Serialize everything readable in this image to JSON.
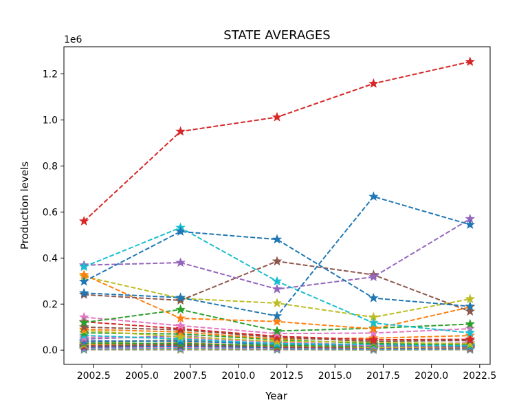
{
  "chart_data": {
    "type": "line",
    "title": "STATE AVERAGES",
    "xlabel": "Year",
    "ylabel": "Production levels",
    "y_offset_text": "1e6",
    "xlim": [
      2000.96,
      2023.04
    ],
    "ylim": [
      -62000,
      1318000
    ],
    "x_ticks": [
      2002.5,
      2005.0,
      2007.5,
      2010.0,
      2012.5,
      2015.0,
      2017.5,
      2020.0,
      2022.5
    ],
    "x_tick_labels": [
      "2002.5",
      "2005.0",
      "2007.5",
      "2010.0",
      "2012.5",
      "2015.0",
      "2017.5",
      "2020.0",
      "2022.5"
    ],
    "y_ticks": [
      0,
      200000,
      400000,
      600000,
      800000,
      1000000,
      1200000
    ],
    "y_tick_labels": [
      "0.0",
      "0.2",
      "0.4",
      "0.6",
      "0.8",
      "1.0",
      "1.2"
    ],
    "grid": false,
    "line_style": "dashed",
    "marker": "star",
    "x": [
      2002,
      2007,
      2012,
      2017,
      2022
    ],
    "series": [
      {
        "color": "#d62728",
        "values": [
          560000,
          950000,
          1012000,
          1158000,
          1253000
        ]
      },
      {
        "color": "#1f77b4",
        "values": [
          298000,
          515000,
          481000,
          226000,
          190000
        ]
      },
      {
        "color": "#1f77b4",
        "values": [
          248000,
          228000,
          148000,
          667000,
          545000
        ]
      },
      {
        "color": "#17becf",
        "values": [
          362000,
          532000,
          299000,
          118000,
          75000
        ]
      },
      {
        "color": "#9467bd",
        "values": [
          369000,
          380000,
          265000,
          318000,
          570000
        ]
      },
      {
        "color": "#8c564b",
        "values": [
          241000,
          216000,
          386000,
          327000,
          168000
        ]
      },
      {
        "color": "#ff7f0e",
        "values": [
          327000,
          138000,
          124000,
          92000,
          187000
        ]
      },
      {
        "color": "#bcbd22",
        "values": [
          320000,
          225000,
          204000,
          143000,
          222000
        ]
      },
      {
        "color": "#2ca02c",
        "values": [
          120000,
          176000,
          83000,
          95000,
          113000
        ]
      },
      {
        "color": "#e377c2",
        "values": [
          143000,
          106000,
          72000,
          74000,
          93000
        ]
      },
      {
        "color": "#d62728",
        "values": [
          123000,
          93000,
          60000,
          45000,
          47000
        ]
      },
      {
        "color": "#8c564b",
        "values": [
          100000,
          88000,
          55000,
          38000,
          42000
        ]
      },
      {
        "color": "#ff7f0e",
        "values": [
          90000,
          79000,
          48000,
          52000,
          63000
        ]
      },
      {
        "color": "#bcbd22",
        "values": [
          85000,
          58000,
          38000,
          35000,
          27000
        ]
      },
      {
        "color": "#2ca02c",
        "values": [
          75000,
          70000,
          45000,
          28000,
          24000
        ]
      },
      {
        "color": "#17becf",
        "values": [
          64000,
          48000,
          28000,
          24000,
          20000
        ]
      },
      {
        "color": "#e377c2",
        "values": [
          56000,
          52000,
          36000,
          21000,
          32000
        ]
      },
      {
        "color": "#9467bd",
        "values": [
          48000,
          62000,
          33000,
          19000,
          18000
        ]
      },
      {
        "color": "#1f77b4",
        "values": [
          40000,
          38000,
          26000,
          22000,
          15000
        ]
      },
      {
        "color": "#7f7f7f",
        "values": [
          35000,
          43000,
          30000,
          17000,
          13000
        ]
      },
      {
        "color": "#2ca02c",
        "values": [
          30000,
          28000,
          20000,
          15000,
          33000
        ]
      },
      {
        "color": "#bcbd22",
        "values": [
          27000,
          46000,
          22000,
          12000,
          16000
        ]
      },
      {
        "color": "#ff7f0e",
        "values": [
          24000,
          31000,
          18000,
          14000,
          11000
        ]
      },
      {
        "color": "#8c564b",
        "values": [
          20000,
          22000,
          16000,
          11000,
          9000
        ]
      },
      {
        "color": "#d62728",
        "values": [
          17000,
          25000,
          14000,
          10000,
          12000
        ]
      },
      {
        "color": "#1f77b4",
        "values": [
          14000,
          16000,
          12000,
          9000,
          8000
        ]
      },
      {
        "color": "#9467bd",
        "values": [
          11000,
          19000,
          10000,
          8000,
          7000
        ]
      },
      {
        "color": "#e377c2",
        "values": [
          9000,
          12000,
          8000,
          7000,
          6000
        ]
      },
      {
        "color": "#17becf",
        "values": [
          6000,
          9000,
          6000,
          5000,
          5000
        ]
      },
      {
        "color": "#7f7f7f",
        "values": [
          4000,
          6000,
          4000,
          3000,
          4000
        ]
      },
      {
        "color": "#bcbd22",
        "values": [
          3000,
          4000,
          3000,
          2000,
          3000
        ]
      },
      {
        "color": "#7f7f7f",
        "values": [
          2000,
          2000,
          2000,
          1000,
          2000
        ]
      }
    ]
  }
}
